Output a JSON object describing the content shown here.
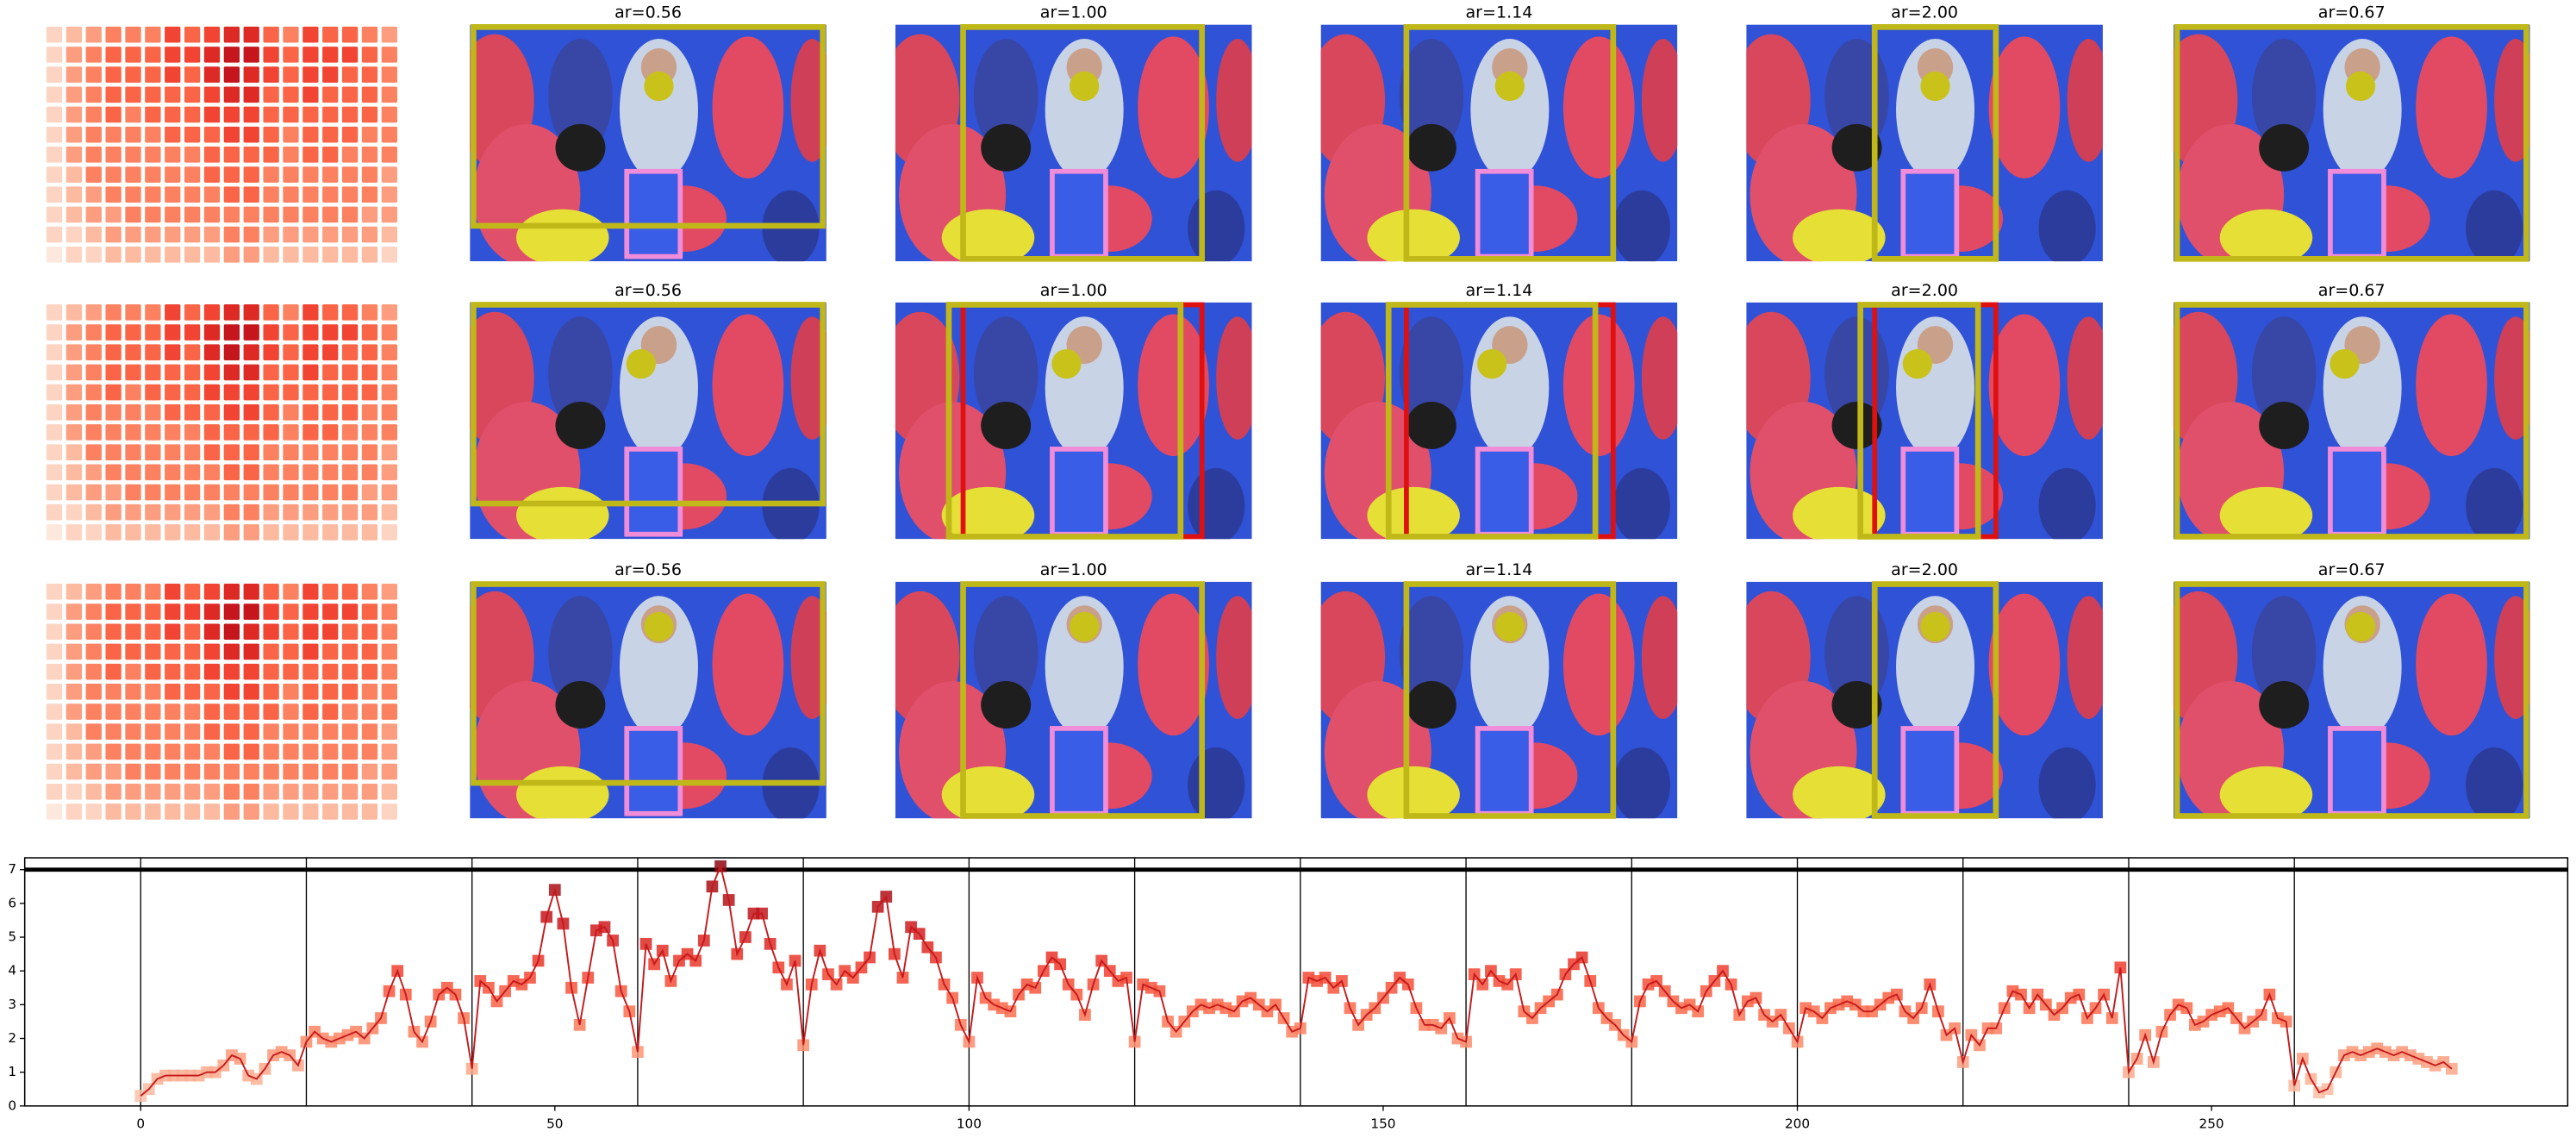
{
  "panels": [
    {
      "titles": [
        "ar=0.56",
        "ar=1.00",
        "ar=1.14",
        "ar=2.00",
        "ar=0.67"
      ]
    },
    {
      "titles": [
        "ar=0.56",
        "ar=1.00",
        "ar=1.14",
        "ar=2.00",
        "ar=0.67"
      ]
    },
    {
      "titles": [
        "ar=0.56",
        "ar=1.00",
        "ar=1.14",
        "ar=2.00",
        "ar=0.67"
      ]
    }
  ],
  "heatmap": [
    [
      1,
      2,
      3,
      4,
      4,
      4,
      6,
      5,
      6,
      7,
      7,
      5,
      4,
      6,
      5,
      5,
      4,
      3
    ],
    [
      1,
      3,
      4,
      5,
      5,
      5,
      6,
      6,
      7,
      8,
      8,
      6,
      5,
      6,
      6,
      6,
      5,
      4
    ],
    [
      1,
      3,
      4,
      5,
      5,
      5,
      6,
      5,
      7,
      8,
      7,
      6,
      5,
      6,
      6,
      5,
      5,
      4
    ],
    [
      1,
      3,
      4,
      5,
      5,
      5,
      5,
      5,
      6,
      7,
      7,
      5,
      5,
      6,
      5,
      5,
      5,
      4
    ],
    [
      1,
      3,
      4,
      5,
      4,
      5,
      5,
      5,
      6,
      6,
      6,
      5,
      5,
      5,
      5,
      5,
      5,
      4
    ],
    [
      1,
      3,
      4,
      4,
      4,
      4,
      5,
      5,
      5,
      6,
      6,
      5,
      4,
      5,
      5,
      5,
      4,
      4
    ],
    [
      1,
      3,
      4,
      4,
      4,
      4,
      4,
      4,
      5,
      5,
      5,
      5,
      4,
      5,
      5,
      4,
      4,
      4
    ],
    [
      1,
      2,
      4,
      4,
      4,
      4,
      4,
      4,
      5,
      5,
      5,
      4,
      4,
      4,
      4,
      4,
      4,
      3
    ],
    [
      1,
      2,
      3,
      4,
      4,
      4,
      4,
      4,
      4,
      5,
      5,
      4,
      4,
      4,
      4,
      4,
      4,
      3
    ],
    [
      1,
      2,
      3,
      3,
      4,
      4,
      4,
      4,
      4,
      4,
      4,
      4,
      4,
      4,
      4,
      4,
      3,
      3
    ],
    [
      1,
      1,
      2,
      3,
      3,
      3,
      3,
      3,
      3,
      4,
      4,
      3,
      3,
      3,
      3,
      3,
      3,
      2
    ],
    [
      0,
      1,
      1,
      2,
      2,
      2,
      2,
      2,
      2,
      3,
      3,
      2,
      2,
      2,
      2,
      2,
      2,
      1
    ]
  ],
  "chart_data": {
    "type": "line",
    "color": "#c41a1c",
    "x": [
      0,
      1,
      2,
      3,
      4,
      5,
      6,
      7,
      8,
      9,
      10,
      11,
      12,
      13,
      14,
      15,
      16,
      17,
      18,
      19,
      20,
      21,
      22,
      23,
      24,
      25,
      26,
      27,
      28,
      29,
      30,
      31,
      32,
      33,
      34,
      35,
      36,
      37,
      38,
      39,
      40,
      41,
      42,
      43,
      44,
      45,
      46,
      47,
      48,
      49,
      50,
      51,
      52,
      53,
      54,
      55,
      56,
      57,
      58,
      59,
      60,
      61,
      62,
      63,
      64,
      65,
      66,
      67,
      68,
      69,
      70,
      71,
      72,
      73,
      74,
      75,
      76,
      77,
      78,
      79,
      80,
      81,
      82,
      83,
      84,
      85,
      86,
      87,
      88,
      89,
      90,
      91,
      92,
      93,
      94,
      95,
      96,
      97,
      98,
      99,
      100,
      101,
      102,
      103,
      104,
      105,
      106,
      107,
      108,
      109,
      110,
      111,
      112,
      113,
      114,
      115,
      116,
      117,
      118,
      119,
      120,
      121,
      122,
      123,
      124,
      125,
      126,
      127,
      128,
      129,
      130,
      131,
      132,
      133,
      134,
      135,
      136,
      137,
      138,
      139,
      140,
      141,
      142,
      143,
      144,
      145,
      146,
      147,
      148,
      149,
      150,
      151,
      152,
      153,
      154,
      155,
      156,
      157,
      158,
      159,
      160,
      161,
      162,
      163,
      164,
      165,
      166,
      167,
      168,
      169,
      170,
      171,
      172,
      173,
      174,
      175,
      176,
      177,
      178,
      179,
      180,
      181,
      182,
      183,
      184,
      185,
      186,
      187,
      188,
      189,
      190,
      191,
      192,
      193,
      194,
      195,
      196,
      197,
      198,
      199,
      200,
      201,
      202,
      203,
      204,
      205,
      206,
      207,
      208,
      209,
      210,
      211,
      212,
      213,
      214,
      215,
      216,
      217,
      218,
      219,
      220,
      221,
      222,
      223,
      224,
      225,
      226,
      227,
      228,
      229,
      230,
      231,
      232,
      233,
      234,
      235,
      236,
      237,
      238,
      239,
      240,
      241,
      242,
      243,
      244,
      245,
      246,
      247,
      248,
      249,
      250,
      251,
      252,
      253,
      254,
      255,
      256,
      257,
      258,
      259,
      260,
      261,
      262,
      263,
      264,
      265,
      266,
      267,
      268,
      269,
      270,
      271,
      272,
      273,
      274,
      275,
      276,
      277,
      278,
      279
    ],
    "values": [
      0.3,
      0.5,
      0.8,
      0.9,
      0.9,
      0.9,
      0.9,
      0.9,
      1.0,
      1.0,
      1.2,
      1.5,
      1.4,
      0.9,
      0.8,
      1.1,
      1.5,
      1.6,
      1.5,
      1.2,
      1.9,
      2.2,
      2.0,
      1.9,
      2.0,
      2.1,
      2.2,
      2.0,
      2.3,
      2.6,
      3.4,
      4.0,
      3.3,
      2.2,
      1.9,
      2.5,
      3.3,
      3.5,
      3.3,
      2.6,
      1.1,
      3.7,
      3.5,
      3.1,
      3.4,
      3.7,
      3.6,
      3.8,
      4.3,
      5.6,
      6.4,
      5.4,
      3.5,
      2.4,
      3.8,
      5.2,
      5.3,
      4.9,
      3.4,
      2.8,
      1.6,
      4.8,
      4.2,
      4.6,
      3.7,
      4.3,
      4.5,
      4.3,
      4.9,
      6.5,
      7.1,
      6.1,
      4.5,
      5.0,
      5.7,
      5.7,
      4.8,
      4.1,
      3.6,
      4.3,
      1.8,
      3.6,
      4.6,
      3.9,
      3.6,
      4.0,
      3.8,
      4.1,
      4.4,
      5.9,
      6.2,
      4.5,
      3.8,
      5.3,
      5.1,
      4.7,
      4.4,
      3.6,
      3.2,
      2.4,
      1.9,
      3.8,
      3.2,
      3.0,
      2.9,
      2.8,
      3.3,
      3.6,
      3.5,
      4.0,
      4.4,
      4.2,
      3.6,
      3.3,
      2.7,
      3.6,
      4.3,
      4.0,
      3.7,
      3.8,
      1.9,
      3.6,
      3.5,
      3.4,
      2.5,
      2.2,
      2.5,
      2.8,
      3.0,
      2.9,
      3.0,
      2.9,
      2.8,
      3.1,
      3.2,
      3.0,
      2.8,
      3.0,
      2.6,
      2.2,
      2.3,
      3.8,
      3.7,
      3.8,
      3.5,
      3.7,
      2.9,
      2.4,
      2.7,
      2.9,
      3.2,
      3.5,
      3.8,
      3.6,
      2.9,
      2.4,
      2.4,
      2.3,
      2.6,
      2.0,
      1.9,
      3.9,
      3.6,
      4.0,
      3.7,
      3.6,
      3.9,
      2.8,
      2.6,
      2.9,
      3.1,
      3.3,
      3.9,
      4.2,
      4.4,
      3.7,
      2.9,
      2.6,
      2.4,
      2.1,
      1.9,
      3.1,
      3.6,
      3.7,
      3.4,
      3.1,
      2.9,
      3.0,
      2.8,
      3.4,
      3.7,
      4.0,
      3.6,
      2.7,
      3.1,
      3.2,
      2.7,
      2.5,
      2.7,
      2.3,
      1.9,
      2.9,
      2.8,
      2.6,
      2.9,
      3.0,
      3.1,
      3.0,
      2.8,
      2.8,
      3.0,
      3.2,
      3.3,
      2.8,
      2.6,
      2.9,
      3.6,
      2.8,
      2.1,
      2.3,
      1.3,
      2.1,
      1.8,
      2.3,
      2.3,
      2.9,
      3.4,
      3.3,
      2.9,
      3.3,
      3.0,
      2.7,
      2.9,
      3.2,
      3.3,
      2.6,
      2.9,
      3.3,
      2.6,
      4.1,
      1.0,
      1.4,
      2.1,
      1.3,
      2.2,
      2.7,
      3.0,
      2.9,
      2.4,
      2.5,
      2.7,
      2.8,
      2.9,
      2.6,
      2.3,
      2.5,
      2.7,
      3.3,
      2.6,
      2.5,
      0.6,
      1.4,
      0.8,
      0.4,
      0.5,
      1.0,
      1.5,
      1.6,
      1.5,
      1.6,
      1.7,
      1.6,
      1.5,
      1.6,
      1.5,
      1.4,
      1.3,
      1.2,
      1.3,
      1.1
    ],
    "xlim": [
      -14,
      293
    ],
    "ylim": [
      0,
      7.35
    ],
    "xticks": [
      0,
      50,
      100,
      150,
      200,
      250
    ],
    "yticks": [
      0,
      1,
      2,
      3,
      4,
      5,
      6,
      7
    ],
    "vlines": [
      0,
      20,
      40,
      60,
      80,
      100,
      120,
      140,
      160,
      180,
      200,
      220,
      240,
      260
    ],
    "hline": 7
  }
}
